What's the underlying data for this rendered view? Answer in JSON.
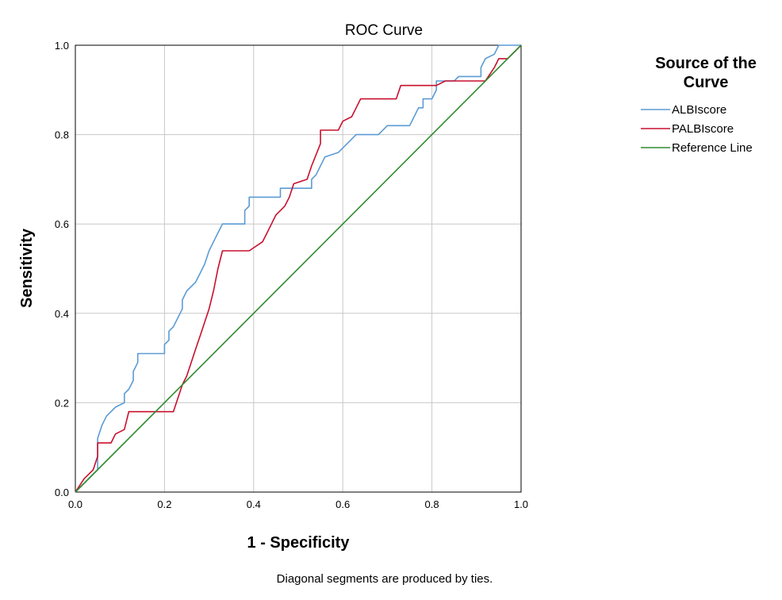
{
  "chart_data": {
    "type": "line",
    "title": "ROC Curve",
    "xlabel": "1 - Specificity",
    "ylabel": "Sensitivity",
    "xlim": [
      0,
      1
    ],
    "ylim": [
      0,
      1
    ],
    "x_ticks": [
      "0.0",
      "0.2",
      "0.4",
      "0.6",
      "0.8",
      "1.0"
    ],
    "y_ticks": [
      "0.0",
      "0.2",
      "0.4",
      "0.6",
      "0.8",
      "1.0"
    ],
    "grid": true,
    "legend_title_lines": [
      "Source of the",
      "Curve"
    ],
    "legend_position": "right",
    "footnote": "Diagonal segments are produced by ties.",
    "series": [
      {
        "name": "ALBIscore",
        "color": "#5b9bd5",
        "points": [
          [
            0,
            0
          ],
          [
            0.05,
            0.05
          ],
          [
            0.05,
            0.12
          ],
          [
            0.06,
            0.15
          ],
          [
            0.07,
            0.17
          ],
          [
            0.09,
            0.19
          ],
          [
            0.11,
            0.2
          ],
          [
            0.11,
            0.22
          ],
          [
            0.12,
            0.23
          ],
          [
            0.13,
            0.25
          ],
          [
            0.13,
            0.27
          ],
          [
            0.14,
            0.29
          ],
          [
            0.14,
            0.31
          ],
          [
            0.2,
            0.31
          ],
          [
            0.2,
            0.33
          ],
          [
            0.21,
            0.34
          ],
          [
            0.21,
            0.36
          ],
          [
            0.22,
            0.37
          ],
          [
            0.23,
            0.39
          ],
          [
            0.24,
            0.41
          ],
          [
            0.24,
            0.43
          ],
          [
            0.25,
            0.45
          ],
          [
            0.26,
            0.46
          ],
          [
            0.27,
            0.47
          ],
          [
            0.28,
            0.49
          ],
          [
            0.29,
            0.51
          ],
          [
            0.3,
            0.54
          ],
          [
            0.31,
            0.56
          ],
          [
            0.32,
            0.58
          ],
          [
            0.33,
            0.6
          ],
          [
            0.38,
            0.6
          ],
          [
            0.38,
            0.63
          ],
          [
            0.39,
            0.64
          ],
          [
            0.39,
            0.66
          ],
          [
            0.46,
            0.66
          ],
          [
            0.46,
            0.68
          ],
          [
            0.53,
            0.68
          ],
          [
            0.53,
            0.7
          ],
          [
            0.54,
            0.71
          ],
          [
            0.55,
            0.73
          ],
          [
            0.56,
            0.75
          ],
          [
            0.59,
            0.76
          ],
          [
            0.61,
            0.78
          ],
          [
            0.63,
            0.8
          ],
          [
            0.68,
            0.8
          ],
          [
            0.7,
            0.82
          ],
          [
            0.75,
            0.82
          ],
          [
            0.76,
            0.84
          ],
          [
            0.77,
            0.86
          ],
          [
            0.78,
            0.86
          ],
          [
            0.78,
            0.88
          ],
          [
            0.8,
            0.88
          ],
          [
            0.81,
            0.9
          ],
          [
            0.81,
            0.92
          ],
          [
            0.85,
            0.92
          ],
          [
            0.86,
            0.93
          ],
          [
            0.91,
            0.93
          ],
          [
            0.91,
            0.95
          ],
          [
            0.92,
            0.97
          ],
          [
            0.94,
            0.98
          ],
          [
            0.95,
            1.0
          ],
          [
            1.0,
            1.0
          ]
        ]
      },
      {
        "name": "PALBIscore",
        "color": "#c8102e",
        "points": [
          [
            0,
            0
          ],
          [
            0.02,
            0.03
          ],
          [
            0.04,
            0.05
          ],
          [
            0.05,
            0.08
          ],
          [
            0.05,
            0.11
          ],
          [
            0.08,
            0.11
          ],
          [
            0.09,
            0.13
          ],
          [
            0.11,
            0.14
          ],
          [
            0.12,
            0.18
          ],
          [
            0.22,
            0.18
          ],
          [
            0.24,
            0.24
          ],
          [
            0.25,
            0.26
          ],
          [
            0.26,
            0.29
          ],
          [
            0.27,
            0.32
          ],
          [
            0.28,
            0.35
          ],
          [
            0.29,
            0.38
          ],
          [
            0.3,
            0.41
          ],
          [
            0.31,
            0.45
          ],
          [
            0.32,
            0.5
          ],
          [
            0.33,
            0.54
          ],
          [
            0.39,
            0.54
          ],
          [
            0.42,
            0.56
          ],
          [
            0.43,
            0.58
          ],
          [
            0.44,
            0.6
          ],
          [
            0.45,
            0.62
          ],
          [
            0.46,
            0.63
          ],
          [
            0.47,
            0.64
          ],
          [
            0.48,
            0.66
          ],
          [
            0.49,
            0.69
          ],
          [
            0.52,
            0.7
          ],
          [
            0.53,
            0.73
          ],
          [
            0.55,
            0.78
          ],
          [
            0.55,
            0.81
          ],
          [
            0.59,
            0.81
          ],
          [
            0.6,
            0.83
          ],
          [
            0.62,
            0.84
          ],
          [
            0.63,
            0.86
          ],
          [
            0.64,
            0.88
          ],
          [
            0.72,
            0.88
          ],
          [
            0.73,
            0.91
          ],
          [
            0.81,
            0.91
          ],
          [
            0.83,
            0.92
          ],
          [
            0.92,
            0.92
          ],
          [
            0.94,
            0.95
          ],
          [
            0.95,
            0.97
          ],
          [
            0.97,
            0.97
          ],
          [
            1.0,
            1.0
          ]
        ]
      },
      {
        "name": "Reference Line",
        "color": "#2e8b2e",
        "points": [
          [
            0,
            0
          ],
          [
            1,
            1
          ]
        ]
      }
    ]
  }
}
